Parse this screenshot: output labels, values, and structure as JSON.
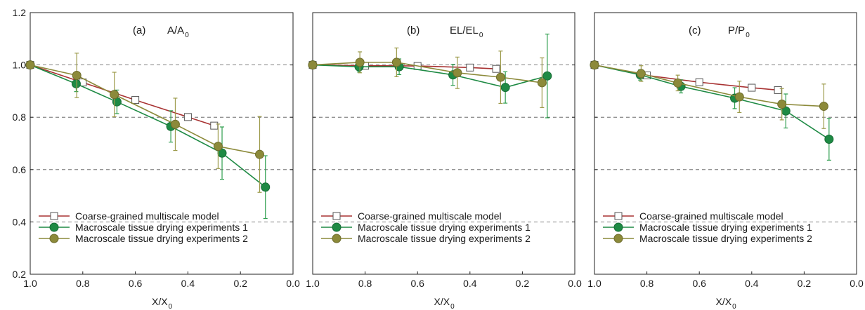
{
  "colors": {
    "model": "#a83232",
    "exp1": "#1e8a44",
    "exp2": "#8c8a3a",
    "exp1_err": "#2e9e4e",
    "exp2_err": "#9c9a4a",
    "grid": "#555555",
    "axis": "#222222"
  },
  "chart_data": [
    {
      "type": "line",
      "panel_label": "(a)",
      "title_base": "A/A",
      "title_sub": "0",
      "xlabel_base": "X/X",
      "xlabel_sub": "0",
      "xlim": [
        1.0,
        0.0
      ],
      "ylim": [
        0.2,
        1.2
      ],
      "x_ticks": [
        "1.0",
        "0.8",
        "0.6",
        "0.4",
        "0.2",
        "0.0"
      ],
      "y_ticks": [
        "0.2",
        "0.4",
        "0.6",
        "0.8",
        "1.0",
        "1.2"
      ],
      "grid": "horizontal dashed at 0.4, 0.6, 0.8, 1.0",
      "legend_position": "bottom-left",
      "series": [
        {
          "name": "Coarse-grained multiscale model",
          "marker": "square",
          "x": [
            1.0,
            0.8,
            0.6,
            0.4,
            0.3
          ],
          "y": [
            1.0,
            0.933,
            0.866,
            0.801,
            0.768
          ]
        },
        {
          "name": "Macroscale tissue drying experiments 1",
          "marker": "circle-green",
          "x": [
            1.0,
            0.825,
            0.67,
            0.465,
            0.27,
            0.105
          ],
          "y": [
            1.0,
            0.928,
            0.859,
            0.765,
            0.663,
            0.533
          ],
          "err": [
            0,
            0.03,
            0.045,
            0.06,
            0.1,
            0.12
          ]
        },
        {
          "name": "Macroscale tissue drying experiments 2",
          "marker": "circle-olive",
          "x": [
            1.0,
            0.823,
            0.68,
            0.448,
            0.285,
            0.127
          ],
          "y": [
            1.0,
            0.96,
            0.887,
            0.773,
            0.689,
            0.658
          ],
          "err": [
            0,
            0.085,
            0.085,
            0.1,
            0.085,
            0.145
          ]
        }
      ]
    },
    {
      "type": "line",
      "panel_label": "(b)",
      "title_base": "EL/EL",
      "title_sub": "0",
      "xlabel_base": "X/X",
      "xlabel_sub": "0",
      "xlim": [
        1.0,
        0.0
      ],
      "ylim": [
        0.2,
        1.2
      ],
      "x_ticks": [
        "1.0",
        "0.8",
        "0.6",
        "0.4",
        "0.2",
        "0.0"
      ],
      "y_ticks": [
        "0.2",
        "0.4",
        "0.6",
        "0.8",
        "1.0",
        "1.2"
      ],
      "grid": "horizontal dashed at 0.4, 0.6, 0.8, 1.0",
      "legend_position": "bottom-left",
      "series": [
        {
          "name": "Coarse-grained multiscale model",
          "marker": "square",
          "x": [
            1.0,
            0.8,
            0.6,
            0.4,
            0.3
          ],
          "y": [
            1.0,
            0.997,
            0.996,
            0.99,
            0.985
          ]
        },
        {
          "name": "Macroscale tissue drying experiments 1",
          "marker": "circle-green",
          "x": [
            1.0,
            0.823,
            0.67,
            0.465,
            0.265,
            0.105
          ],
          "y": [
            1.0,
            0.993,
            0.993,
            0.962,
            0.914,
            0.958
          ],
          "err": [
            0,
            0.02,
            0.03,
            0.04,
            0.06,
            0.16
          ]
        },
        {
          "name": "Macroscale tissue drying experiments 2",
          "marker": "circle-olive",
          "x": [
            1.0,
            0.82,
            0.68,
            0.448,
            0.283,
            0.125
          ],
          "y": [
            1.0,
            1.01,
            1.01,
            0.97,
            0.953,
            0.932
          ],
          "err": [
            0,
            0.04,
            0.055,
            0.06,
            0.1,
            0.095
          ]
        }
      ]
    },
    {
      "type": "line",
      "panel_label": "(c)",
      "title_base": "P/P",
      "title_sub": "0",
      "xlabel_base": "X/X",
      "xlabel_sub": "0",
      "xlim": [
        1.0,
        0.0
      ],
      "ylim": [
        0.2,
        1.2
      ],
      "x_ticks": [
        "1.0",
        "0.8",
        "0.6",
        "0.4",
        "0.2",
        "0.0"
      ],
      "y_ticks": [
        "0.2",
        "0.4",
        "0.6",
        "0.8",
        "1.0",
        "1.2"
      ],
      "grid": "horizontal dashed at 0.4, 0.6, 0.8, 1.0",
      "legend_position": "bottom-left",
      "series": [
        {
          "name": "Coarse-grained multiscale model",
          "marker": "square",
          "x": [
            1.0,
            0.8,
            0.6,
            0.4,
            0.3
          ],
          "y": [
            1.0,
            0.96,
            0.934,
            0.913,
            0.904
          ]
        },
        {
          "name": "Macroscale tissue drying experiments 1",
          "marker": "circle-green",
          "x": [
            1.0,
            0.825,
            0.67,
            0.465,
            0.27,
            0.105
          ],
          "y": [
            1.0,
            0.962,
            0.918,
            0.873,
            0.824,
            0.716
          ],
          "err": [
            0,
            0.02,
            0.025,
            0.04,
            0.065,
            0.08
          ]
        },
        {
          "name": "Macroscale tissue drying experiments 2",
          "marker": "circle-olive",
          "x": [
            1.0,
            0.822,
            0.682,
            0.447,
            0.285,
            0.125
          ],
          "y": [
            1.0,
            0.967,
            0.931,
            0.878,
            0.85,
            0.842
          ],
          "err": [
            0,
            0.03,
            0.03,
            0.06,
            0.06,
            0.085
          ]
        }
      ]
    }
  ]
}
